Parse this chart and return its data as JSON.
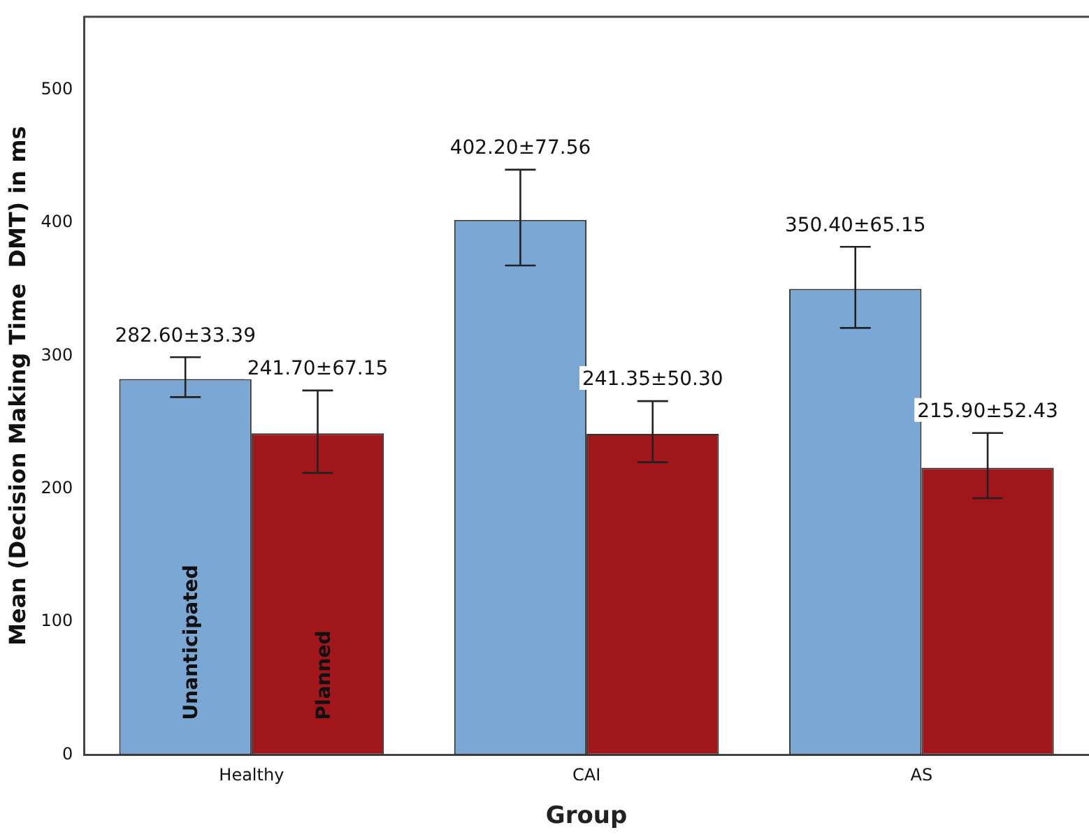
{
  "chart_data": {
    "type": "bar",
    "xlabel": "Group",
    "ylabel": "Mean (Decision Making Time  DMT) in ms",
    "categories": [
      "Healthy",
      "CAI",
      "AS"
    ],
    "series": [
      {
        "name": "Unanticipated",
        "color": "#7ba7d4",
        "values": [
          282.6,
          402.2,
          350.4
        ],
        "errors": [
          [
            269,
            299
          ],
          [
            368,
            440
          ],
          [
            321,
            382
          ]
        ],
        "value_labels": [
          "282.60±33.39",
          "402.20±77.56",
          "350.40±65.15"
        ]
      },
      {
        "name": "Planned",
        "color": "#a0161b",
        "values": [
          241.7,
          241.35,
          215.9
        ],
        "errors": [
          [
            212,
            274
          ],
          [
            220,
            266
          ],
          [
            193,
            242
          ]
        ],
        "value_labels": [
          "241.70±67.15",
          "241.35±50.30",
          "215.90±52.43"
        ]
      }
    ],
    "ylim": [
      0,
      555
    ],
    "yticks": [
      0,
      100,
      200,
      300,
      400,
      500
    ],
    "grid": false,
    "legend": false
  }
}
